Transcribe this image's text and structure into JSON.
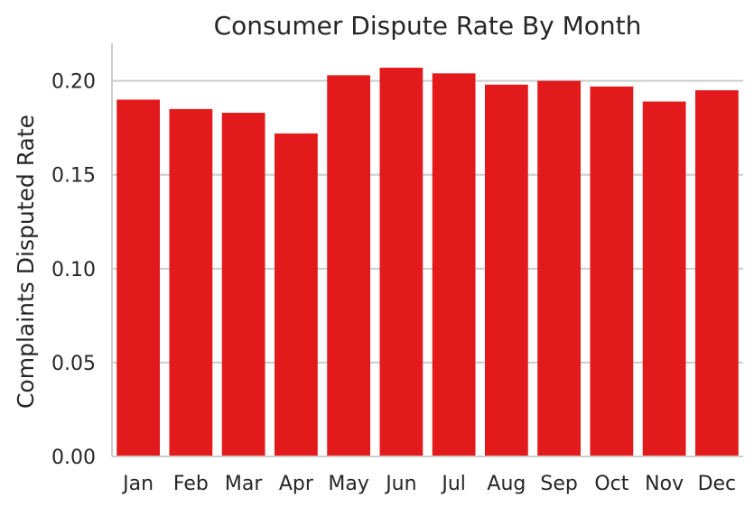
{
  "chart_data": {
    "type": "bar",
    "title": "Consumer Dispute Rate By Month",
    "xlabel": "",
    "ylabel": "Complaints Disputed Rate",
    "categories": [
      "Jan",
      "Feb",
      "Mar",
      "Apr",
      "May",
      "Jun",
      "Jul",
      "Aug",
      "Sep",
      "Oct",
      "Nov",
      "Dec"
    ],
    "values": [
      0.19,
      0.185,
      0.183,
      0.172,
      0.203,
      0.207,
      0.204,
      0.198,
      0.2,
      0.197,
      0.189,
      0.195
    ],
    "ylim": [
      0,
      0.22
    ],
    "yticks": [
      0.0,
      0.05,
      0.1,
      0.15,
      0.2
    ],
    "ytick_labels": [
      "0.00",
      "0.05",
      "0.10",
      "0.15",
      "0.20"
    ],
    "grid": "horizontal",
    "bar_color": "#e31a1c",
    "grid_color": "#cccccc",
    "axis_color": "#cccccc",
    "text_color": "#262626"
  }
}
